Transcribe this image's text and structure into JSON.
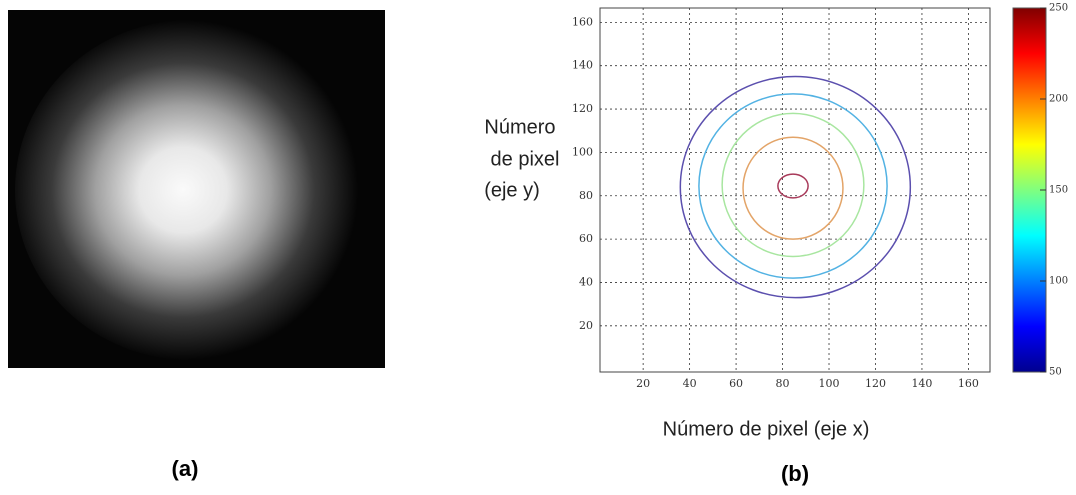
{
  "chart_data": [
    {
      "type": "image",
      "caption": "(a)"
    },
    {
      "type": "contour",
      "caption": "(b)",
      "xlabel": "Número de pixel (eje x)",
      "ylabel": [
        "Número",
        "de pixel",
        "(eje y)"
      ],
      "xlim": [
        1,
        168
      ],
      "ylim": [
        1,
        168
      ],
      "xticks": [
        20,
        40,
        60,
        80,
        100,
        120,
        140,
        160
      ],
      "yticks": [
        20,
        40,
        60,
        80,
        100,
        120,
        140,
        160
      ],
      "grid": true,
      "clim": [
        50,
        250
      ],
      "cticks": [
        50,
        100,
        150,
        200,
        250
      ],
      "series": [
        {
          "color": "#5b4fae",
          "level": 60,
          "cx": 85.5,
          "cy": 84,
          "rx": 49.5,
          "ry": 51
        },
        {
          "color": "#52b2e3",
          "level": 100,
          "cx": 84.5,
          "cy": 84.5,
          "rx": 40.5,
          "ry": 42.5
        },
        {
          "color": "#a8e6a0",
          "level": 140,
          "cx": 84.5,
          "cy": 85,
          "rx": 30.5,
          "ry": 33
        },
        {
          "color": "#e3a468",
          "level": 180,
          "cx": 84.5,
          "cy": 83.5,
          "rx": 21.5,
          "ry": 23.5
        },
        {
          "color": "#a83a5a",
          "level": 220,
          "cx": 84.5,
          "cy": 84.5,
          "rx": 6.5,
          "ry": 5.5
        }
      ]
    }
  ]
}
